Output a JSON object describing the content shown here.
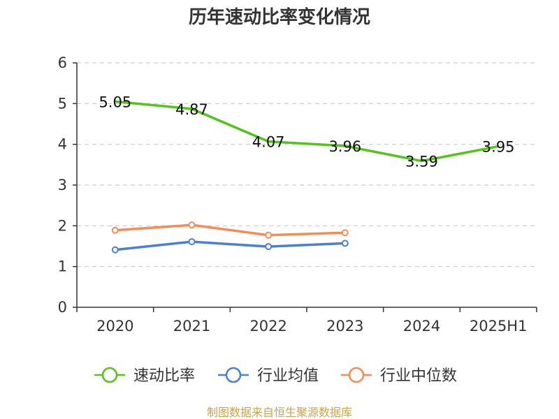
{
  "chart_data": {
    "type": "line",
    "title": "历年速动比率变化情况",
    "categories": [
      "2020",
      "2021",
      "2022",
      "2023",
      "2024",
      "2025H1"
    ],
    "ylim": [
      0,
      6
    ],
    "yticks": [
      0,
      1,
      2,
      3,
      4,
      5,
      6
    ],
    "grid": true,
    "legend_position": "bottom",
    "series": [
      {
        "name": "速动比率",
        "color": "#52c41a",
        "marker": "none",
        "show_labels": true,
        "values": [
          5.05,
          4.87,
          4.07,
          3.96,
          3.59,
          3.95
        ],
        "labels": [
          "5.05",
          "4.87",
          "4.07",
          "3.96",
          "3.59",
          "3.95"
        ]
      },
      {
        "name": "行业均值",
        "color": "#4a7fd6",
        "marker": "circle",
        "show_labels": false,
        "values": [
          1.41,
          1.61,
          1.49,
          1.57,
          null,
          null
        ]
      },
      {
        "name": "行业中位数",
        "color": "#f78b54",
        "marker": "circle",
        "show_labels": false,
        "values": [
          1.89,
          2.02,
          1.77,
          1.83,
          null,
          null
        ]
      }
    ]
  },
  "footer": {
    "source": "制图数据来自恒生聚源数据库"
  }
}
